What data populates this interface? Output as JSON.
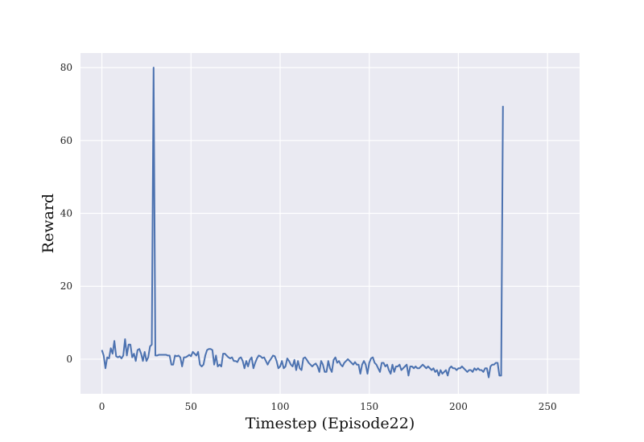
{
  "chart_data": {
    "type": "line",
    "title": "",
    "xlabel": "Timestep (Episode22)",
    "ylabel": "Reward",
    "xlim": [
      -12,
      268
    ],
    "ylim": [
      -9.5,
      84
    ],
    "xticks": [
      0,
      50,
      100,
      150,
      200,
      250
    ],
    "yticks": [
      0,
      20,
      40,
      60,
      80
    ],
    "grid": true,
    "legend": "none",
    "colors": {
      "background": "#eaeaf2",
      "grid": "#ffffff",
      "line": "#4c72b0"
    },
    "series": [
      {
        "values": [
          2.5,
          1.0,
          -2.5,
          0.5,
          0.2,
          3.0,
          1.5,
          5.0,
          0.8,
          0.5,
          0.8,
          0.2,
          1.0,
          5.5,
          1.0,
          4.0,
          4.0,
          0.5,
          1.5,
          -0.5,
          2.5,
          2.8,
          1.5,
          -0.5,
          2.0,
          -0.5,
          0.5,
          3.5,
          4.0,
          80.0,
          1.0,
          1.0,
          1.2,
          1.2,
          1.2,
          1.2,
          1.2,
          1.0,
          1.0,
          -1.5,
          -1.5,
          1.0,
          0.8,
          1.0,
          0.5,
          -2.0,
          0.5,
          0.5,
          0.8,
          1.2,
          0.8,
          2.0,
          1.5,
          1.0,
          2.0,
          -1.5,
          -2.0,
          -1.5,
          1.0,
          2.5,
          2.8,
          2.8,
          2.5,
          -1.5,
          1.0,
          -2.0,
          -1.5,
          -2.0,
          1.5,
          1.5,
          1.0,
          0.5,
          0.2,
          0.5,
          -0.5,
          -0.5,
          -0.8,
          0.2,
          0.5,
          -0.5,
          -2.5,
          -0.5,
          -2.0,
          -0.2,
          0.5,
          -2.5,
          -1.0,
          0.2,
          1.0,
          0.8,
          0.3,
          0.5,
          -0.5,
          -1.5,
          -0.5,
          0.2,
          1.0,
          0.8,
          -0.5,
          -2.5,
          -2.0,
          -0.5,
          -2.5,
          -2.0,
          0.2,
          -0.5,
          -1.5,
          -2.0,
          -0.2,
          -3.0,
          -0.5,
          -2.5,
          -3.0,
          0.2,
          0.5,
          -0.2,
          -1.0,
          -1.5,
          -2.0,
          -1.5,
          -1.2,
          -2.0,
          -3.5,
          -0.5,
          -1.5,
          -3.5,
          -3.5,
          -0.5,
          -2.5,
          -3.5,
          -0.2,
          0.5,
          -1.0,
          -0.5,
          -1.5,
          -2.0,
          -1.0,
          -0.5,
          0.0,
          -0.5,
          -1.0,
          -1.5,
          -0.8,
          -1.5,
          -1.5,
          -4.0,
          -1.5,
          -0.5,
          -1.5,
          -4.0,
          -1.0,
          0.2,
          0.5,
          -1.0,
          -1.5,
          -2.5,
          -3.5,
          -1.0,
          -1.0,
          -2.0,
          -1.5,
          -3.0,
          -4.0,
          -1.5,
          -3.5,
          -2.0,
          -2.0,
          -1.5,
          -3.0,
          -2.5,
          -2.0,
          -1.5,
          -4.5,
          -2.0,
          -2.0,
          -2.5,
          -2.0,
          -2.5,
          -2.5,
          -2.0,
          -1.5,
          -2.0,
          -2.5,
          -2.0,
          -2.5,
          -3.0,
          -2.5,
          -3.5,
          -3.0,
          -4.5,
          -3.0,
          -4.0,
          -3.5,
          -3.0,
          -4.5,
          -2.5,
          -2.0,
          -2.5,
          -2.5,
          -3.0,
          -2.5,
          -2.5,
          -2.0,
          -2.5,
          -3.0,
          -3.5,
          -3.0,
          -3.0,
          -3.5,
          -2.5,
          -3.0,
          -2.5,
          -3.0,
          -3.0,
          -3.5,
          -2.5,
          -2.5,
          -5.0,
          -2.0,
          -1.5,
          -1.5,
          -1.0,
          -1.0,
          -4.5,
          -4.5,
          69.5
        ]
      }
    ]
  }
}
